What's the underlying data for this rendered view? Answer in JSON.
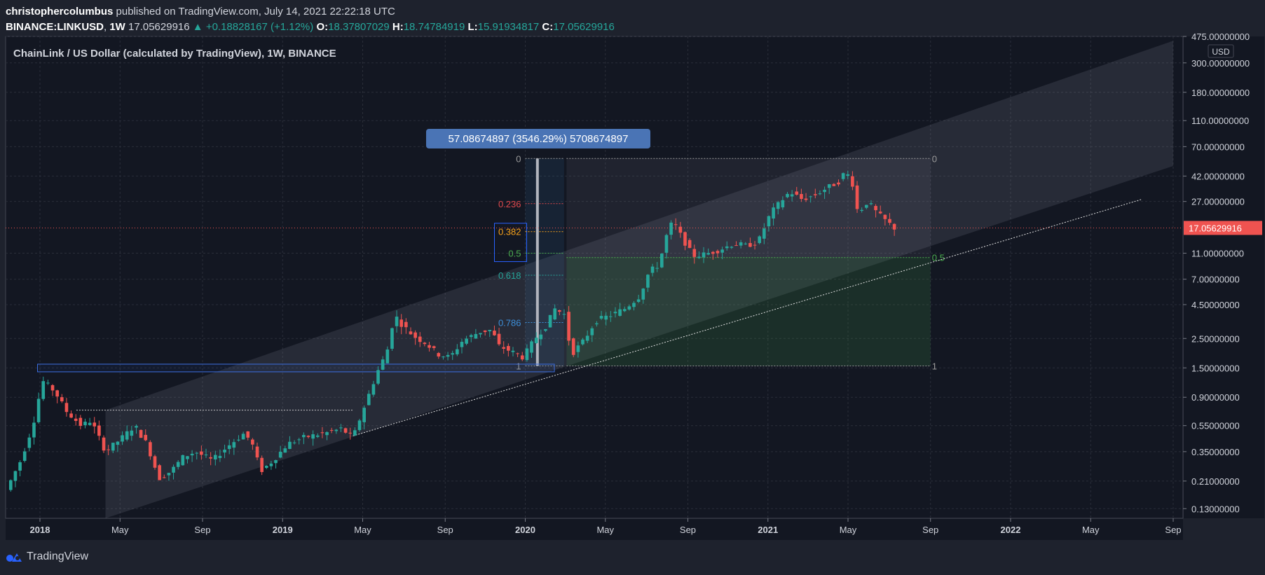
{
  "header": {
    "author": "christophercolumbus",
    "published": " published on TradingView.com, July 14, 2021 22:22:18 UTC",
    "symbol": "BINANCE:LINKUSD",
    "interval": "1W",
    "last": "17.05629916",
    "change": "+0.18828167 (+1.12%)",
    "o_label": "O:",
    "o": "18.37807029",
    "h_label": "H:",
    "h": "18.74784919",
    "l_label": "L:",
    "l": "15.91934817",
    "c_label": "C:",
    "c": "17.05629916"
  },
  "footer": {
    "brand": "TradingView"
  },
  "colors": {
    "up": "#26a69a",
    "down": "#ef5350",
    "background": "#1e222d",
    "accent": "#2962ff"
  },
  "chart_data": {
    "type": "candlestick",
    "title": "ChainLink / US Dollar (calculated by TradingView), 1W, BINANCE",
    "currency": "USD",
    "y_scale": "log",
    "ylim": [
      0.11,
      475
    ],
    "y_ticks": [
      "475.00000000",
      "300.00000000",
      "180.00000000",
      "110.00000000",
      "70.00000000",
      "42.00000000",
      "27.00000000",
      "17.05629916",
      "11.00000000",
      "7.00000000",
      "4.50000000",
      "2.50000000",
      "1.50000000",
      "0.90000000",
      "0.55000000",
      "0.35000000",
      "0.21000000",
      "0.13000000"
    ],
    "x_ticks": [
      {
        "label": "2018",
        "t": 2018.0,
        "bold": true
      },
      {
        "label": "May",
        "t": 2018.33
      },
      {
        "label": "Sep",
        "t": 2018.67
      },
      {
        "label": "2019",
        "t": 2019.0,
        "bold": true
      },
      {
        "label": "May",
        "t": 2019.33
      },
      {
        "label": "Sep",
        "t": 2019.67
      },
      {
        "label": "2020",
        "t": 2020.0,
        "bold": true
      },
      {
        "label": "May",
        "t": 2020.33
      },
      {
        "label": "Sep",
        "t": 2020.67
      },
      {
        "label": "2021",
        "t": 2021.0,
        "bold": true
      },
      {
        "label": "May",
        "t": 2021.33
      },
      {
        "label": "Sep",
        "t": 2021.67
      },
      {
        "label": "2022",
        "t": 2022.0,
        "bold": true
      },
      {
        "label": "May",
        "t": 2022.33
      },
      {
        "label": "Sep",
        "t": 2022.67
      }
    ],
    "last_price": "17.05629916",
    "last_price_value": 17.056,
    "price_path": [
      {
        "t": 2017.87,
        "v": 0.18
      },
      {
        "t": 2017.93,
        "v": 0.3
      },
      {
        "t": 2017.98,
        "v": 0.55
      },
      {
        "t": 2018.02,
        "v": 1.2
      },
      {
        "t": 2018.07,
        "v": 1.0
      },
      {
        "t": 2018.12,
        "v": 0.7
      },
      {
        "t": 2018.18,
        "v": 0.55
      },
      {
        "t": 2018.22,
        "v": 0.6
      },
      {
        "t": 2018.28,
        "v": 0.35
      },
      {
        "t": 2018.35,
        "v": 0.45
      },
      {
        "t": 2018.4,
        "v": 0.55
      },
      {
        "t": 2018.45,
        "v": 0.4
      },
      {
        "t": 2018.5,
        "v": 0.22
      },
      {
        "t": 2018.55,
        "v": 0.25
      },
      {
        "t": 2018.6,
        "v": 0.32
      },
      {
        "t": 2018.65,
        "v": 0.35
      },
      {
        "t": 2018.72,
        "v": 0.3
      },
      {
        "t": 2018.78,
        "v": 0.38
      },
      {
        "t": 2018.85,
        "v": 0.48
      },
      {
        "t": 2018.88,
        "v": 0.42
      },
      {
        "t": 2018.92,
        "v": 0.25
      },
      {
        "t": 2018.97,
        "v": 0.3
      },
      {
        "t": 2019.03,
        "v": 0.4
      },
      {
        "t": 2019.1,
        "v": 0.45
      },
      {
        "t": 2019.18,
        "v": 0.48
      },
      {
        "t": 2019.25,
        "v": 0.52
      },
      {
        "t": 2019.3,
        "v": 0.45
      },
      {
        "t": 2019.35,
        "v": 0.8
      },
      {
        "t": 2019.4,
        "v": 1.4
      },
      {
        "t": 2019.44,
        "v": 2.0
      },
      {
        "t": 2019.47,
        "v": 3.8
      },
      {
        "t": 2019.5,
        "v": 3.2
      },
      {
        "t": 2019.55,
        "v": 2.6
      },
      {
        "t": 2019.6,
        "v": 2.3
      },
      {
        "t": 2019.65,
        "v": 1.9
      },
      {
        "t": 2019.7,
        "v": 1.8
      },
      {
        "t": 2019.75,
        "v": 2.4
      },
      {
        "t": 2019.82,
        "v": 2.8
      },
      {
        "t": 2019.87,
        "v": 2.9
      },
      {
        "t": 2019.9,
        "v": 2.2
      },
      {
        "t": 2019.95,
        "v": 2.0
      },
      {
        "t": 2020.0,
        "v": 1.8
      },
      {
        "t": 2020.05,
        "v": 2.5
      },
      {
        "t": 2020.1,
        "v": 3.2
      },
      {
        "t": 2020.13,
        "v": 4.2
      },
      {
        "t": 2020.17,
        "v": 3.8
      },
      {
        "t": 2020.2,
        "v": 1.9
      },
      {
        "t": 2020.25,
        "v": 2.4
      },
      {
        "t": 2020.3,
        "v": 3.4
      },
      {
        "t": 2020.37,
        "v": 3.8
      },
      {
        "t": 2020.42,
        "v": 4.2
      },
      {
        "t": 2020.48,
        "v": 5.2
      },
      {
        "t": 2020.52,
        "v": 8.0
      },
      {
        "t": 2020.56,
        "v": 9.0
      },
      {
        "t": 2020.6,
        "v": 17.0
      },
      {
        "t": 2020.62,
        "v": 19.0
      },
      {
        "t": 2020.65,
        "v": 15.0
      },
      {
        "t": 2020.7,
        "v": 10.5
      },
      {
        "t": 2020.75,
        "v": 10.8
      },
      {
        "t": 2020.8,
        "v": 11.5
      },
      {
        "t": 2020.87,
        "v": 13.0
      },
      {
        "t": 2020.92,
        "v": 12.5
      },
      {
        "t": 2020.97,
        "v": 13.5
      },
      {
        "t": 2021.02,
        "v": 22.0
      },
      {
        "t": 2021.07,
        "v": 28.0
      },
      {
        "t": 2021.1,
        "v": 32.0
      },
      {
        "t": 2021.15,
        "v": 28.0
      },
      {
        "t": 2021.2,
        "v": 30.0
      },
      {
        "t": 2021.25,
        "v": 34.0
      },
      {
        "t": 2021.3,
        "v": 38.0
      },
      {
        "t": 2021.33,
        "v": 46.0
      },
      {
        "t": 2021.36,
        "v": 36.0
      },
      {
        "t": 2021.38,
        "v": 22.0
      },
      {
        "t": 2021.42,
        "v": 27.0
      },
      {
        "t": 2021.46,
        "v": 22.0
      },
      {
        "t": 2021.5,
        "v": 19.0
      },
      {
        "t": 2021.53,
        "v": 17.06
      }
    ],
    "measure_label": "57.08674897 (3546.29%) 5708674897",
    "fibonacci": {
      "levels": [
        {
          "label": "0",
          "value": 57.0,
          "color": "#9b9b9b"
        },
        {
          "label": "0.236",
          "value": 26.0,
          "color": "#e0494d"
        },
        {
          "label": "0.382",
          "value": 16.0,
          "color": "#f7a21b"
        },
        {
          "label": "0.5",
          "value": 11.0,
          "color": "#4caf50"
        },
        {
          "label": "0.618",
          "value": 7.5,
          "color": "#26a69a"
        },
        {
          "label": "0.786",
          "value": 3.3,
          "color": "#3d8fd9"
        },
        {
          "label": "1",
          "value": 1.55,
          "color": "#9b9b9b"
        }
      ],
      "t_start": 2020.0,
      "t_end": 2020.16
    },
    "fib_retrace_right": {
      "t_start": 2020.17,
      "t_end": 2021.67,
      "levels": [
        {
          "label": "0",
          "value": 57.0,
          "color": "#9b9b9b"
        },
        {
          "label": "0.5",
          "value": 10.2,
          "color": "#4caf50"
        },
        {
          "label": "1",
          "value": 1.55,
          "color": "#9b9b9b"
        }
      ]
    },
    "channel": {
      "start_t": 2018.27,
      "end_t": 2022.67,
      "lower_start": 0.11,
      "lower_end": 50.0,
      "upper_start": 0.72,
      "upper_end": 440.0
    },
    "trendline": {
      "t1": 2019.29,
      "v1": 0.46,
      "t2": 2022.54,
      "v2": 28.0
    },
    "support_box": {
      "t_start": 2017.99,
      "t_end": 2020.12,
      "top": 1.6,
      "bottom": 1.4
    },
    "resistance_line": {
      "t_start": 2018.15,
      "t_end": 2019.29,
      "value": 0.72
    }
  }
}
